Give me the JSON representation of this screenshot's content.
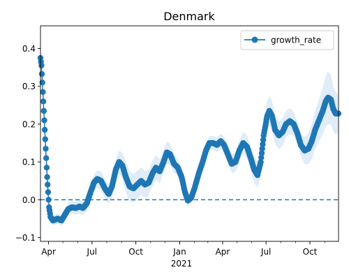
{
  "chart_data": {
    "type": "line",
    "title": "Denmark",
    "xlabel": "",
    "ylabel": "",
    "x_range": [
      "2020-03-15",
      "2021-11-30"
    ],
    "ylim": [
      -0.11,
      0.46
    ],
    "x_tick_labels": [
      {
        "date": "2020-04-01",
        "label": "Apr"
      },
      {
        "date": "2020-07-01",
        "label": "Jul"
      },
      {
        "date": "2020-10-01",
        "label": "Oct"
      },
      {
        "date": "2021-01-01",
        "label": "Jan"
      },
      {
        "date": "2021-04-01",
        "label": "Apr"
      },
      {
        "date": "2021-07-01",
        "label": "Jul"
      },
      {
        "date": "2021-10-01",
        "label": "Oct"
      }
    ],
    "x_year_label": "2021",
    "y_ticks": [
      -0.1,
      0.0,
      0.1,
      0.2,
      0.3,
      0.4
    ],
    "y_tick_labels": [
      "−0.1",
      "0.0",
      "0.1",
      "0.2",
      "0.3",
      "0.4"
    ],
    "grid": false,
    "legend": {
      "position": "top-right",
      "entries": [
        "growth_rate"
      ]
    },
    "reference_line": {
      "y": 0.0,
      "style": "dashed"
    },
    "colors": {
      "series": "#1f77b4",
      "band": "#c6dcf0"
    },
    "series": [
      {
        "name": "growth_rate",
        "marker": "circle",
        "points": [
          [
            "2020-03-15",
            0.375
          ],
          [
            "2020-03-17",
            0.355
          ],
          [
            "2020-03-19",
            0.31
          ],
          [
            "2020-03-21",
            0.26
          ],
          [
            "2020-03-23",
            0.21
          ],
          [
            "2020-03-25",
            0.16
          ],
          [
            "2020-03-27",
            0.11
          ],
          [
            "2020-03-29",
            0.06
          ],
          [
            "2020-03-31",
            0.02
          ],
          [
            "2020-04-02",
            -0.02
          ],
          [
            "2020-04-05",
            -0.045
          ],
          [
            "2020-04-10",
            -0.055
          ],
          [
            "2020-04-20",
            -0.05
          ],
          [
            "2020-04-28",
            -0.055
          ],
          [
            "2020-05-05",
            -0.04
          ],
          [
            "2020-05-12",
            -0.025
          ],
          [
            "2020-05-20",
            -0.02
          ],
          [
            "2020-05-28",
            -0.022
          ],
          [
            "2020-06-05",
            -0.018
          ],
          [
            "2020-06-12",
            -0.022
          ],
          [
            "2020-06-20",
            -0.01
          ],
          [
            "2020-06-28",
            0.02
          ],
          [
            "2020-07-05",
            0.045
          ],
          [
            "2020-07-12",
            0.055
          ],
          [
            "2020-07-20",
            0.05
          ],
          [
            "2020-07-28",
            0.03
          ],
          [
            "2020-08-05",
            0.015
          ],
          [
            "2020-08-12",
            0.035
          ],
          [
            "2020-08-20",
            0.08
          ],
          [
            "2020-08-27",
            0.1
          ],
          [
            "2020-09-03",
            0.09
          ],
          [
            "2020-09-10",
            0.06
          ],
          [
            "2020-09-18",
            0.035
          ],
          [
            "2020-09-26",
            0.03
          ],
          [
            "2020-10-04",
            0.04
          ],
          [
            "2020-10-12",
            0.05
          ],
          [
            "2020-10-20",
            0.04
          ],
          [
            "2020-10-28",
            0.045
          ],
          [
            "2020-11-05",
            0.07
          ],
          [
            "2020-11-12",
            0.085
          ],
          [
            "2020-11-20",
            0.075
          ],
          [
            "2020-11-28",
            0.1
          ],
          [
            "2020-12-05",
            0.125
          ],
          [
            "2020-12-12",
            0.12
          ],
          [
            "2020-12-20",
            0.095
          ],
          [
            "2020-12-28",
            0.085
          ],
          [
            "2021-01-05",
            0.06
          ],
          [
            "2021-01-12",
            0.02
          ],
          [
            "2021-01-18",
            -0.002
          ],
          [
            "2021-01-25",
            0.005
          ],
          [
            "2021-02-01",
            0.03
          ],
          [
            "2021-02-10",
            0.07
          ],
          [
            "2021-02-18",
            0.1
          ],
          [
            "2021-02-25",
            0.13
          ],
          [
            "2021-03-04",
            0.15
          ],
          [
            "2021-03-12",
            0.15
          ],
          [
            "2021-03-20",
            0.145
          ],
          [
            "2021-03-28",
            0.155
          ],
          [
            "2021-04-04",
            0.145
          ],
          [
            "2021-04-12",
            0.12
          ],
          [
            "2021-04-20",
            0.095
          ],
          [
            "2021-04-28",
            0.1
          ],
          [
            "2021-05-06",
            0.13
          ],
          [
            "2021-05-14",
            0.15
          ],
          [
            "2021-05-22",
            0.14
          ],
          [
            "2021-05-30",
            0.11
          ],
          [
            "2021-06-06",
            0.08
          ],
          [
            "2021-06-13",
            0.065
          ],
          [
            "2021-06-20",
            0.1
          ],
          [
            "2021-06-26",
            0.17
          ],
          [
            "2021-07-03",
            0.22
          ],
          [
            "2021-07-08",
            0.235
          ],
          [
            "2021-07-14",
            0.22
          ],
          [
            "2021-07-20",
            0.185
          ],
          [
            "2021-07-28",
            0.17
          ],
          [
            "2021-08-05",
            0.18
          ],
          [
            "2021-08-12",
            0.2
          ],
          [
            "2021-08-20",
            0.208
          ],
          [
            "2021-08-28",
            0.2
          ],
          [
            "2021-09-05",
            0.175
          ],
          [
            "2021-09-12",
            0.145
          ],
          [
            "2021-09-20",
            0.13
          ],
          [
            "2021-09-28",
            0.135
          ],
          [
            "2021-10-05",
            0.155
          ],
          [
            "2021-10-12",
            0.185
          ],
          [
            "2021-10-20",
            0.21
          ],
          [
            "2021-10-28",
            0.235
          ],
          [
            "2021-11-03",
            0.26
          ],
          [
            "2021-11-08",
            0.27
          ],
          [
            "2021-11-14",
            0.265
          ],
          [
            "2021-11-19",
            0.24
          ],
          [
            "2021-11-24",
            0.228
          ],
          [
            "2021-11-30",
            0.228
          ]
        ],
        "band_halfwidth": [
          [
            "2020-03-15",
            0.005
          ],
          [
            "2020-04-05",
            0.012
          ],
          [
            "2020-06-20",
            0.02
          ],
          [
            "2020-08-27",
            0.03
          ],
          [
            "2020-09-10",
            0.04
          ],
          [
            "2020-12-05",
            0.03
          ],
          [
            "2021-01-18",
            0.015
          ],
          [
            "2021-03-28",
            0.02
          ],
          [
            "2021-07-08",
            0.04
          ],
          [
            "2021-09-12",
            0.03
          ],
          [
            "2021-11-08",
            0.07
          ],
          [
            "2021-11-30",
            0.05
          ]
        ]
      }
    ]
  }
}
